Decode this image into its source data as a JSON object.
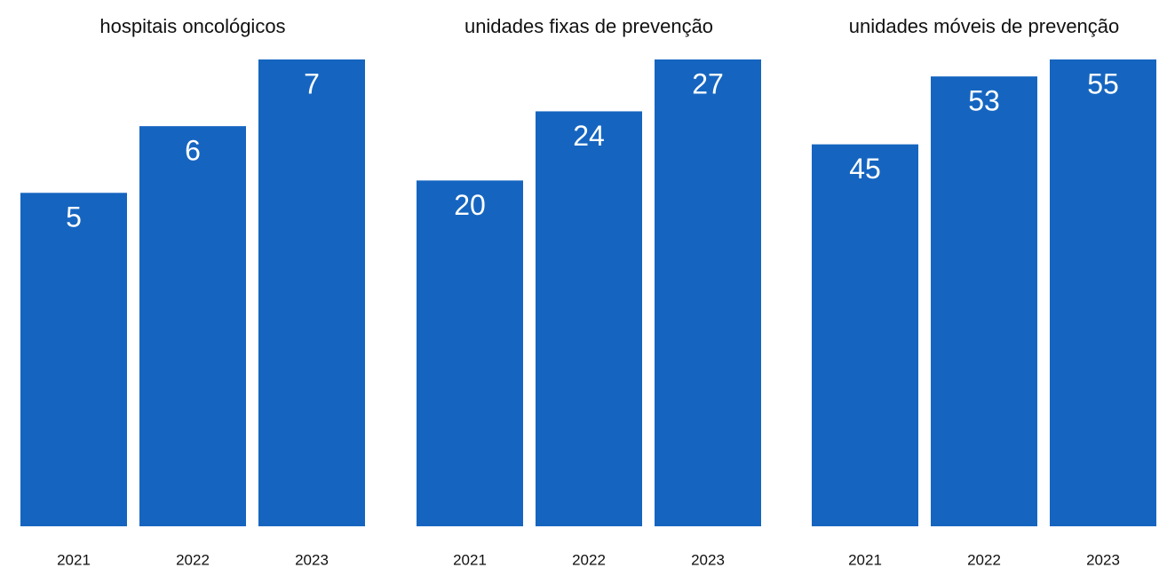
{
  "chart_data": [
    {
      "type": "bar",
      "title": "hospitais oncológicos",
      "categories": [
        "2021",
        "2022",
        "2023"
      ],
      "values": [
        5,
        6,
        7
      ],
      "color": "#1565c0",
      "ylim": [
        0,
        7
      ]
    },
    {
      "type": "bar",
      "title": "unidades fixas de prevenção",
      "categories": [
        "2021",
        "2022",
        "2023"
      ],
      "values": [
        20,
        24,
        27
      ],
      "color": "#1565c0",
      "ylim": [
        0,
        27
      ]
    },
    {
      "type": "bar",
      "title": "unidades móveis de prevenção",
      "categories": [
        "2021",
        "2022",
        "2023"
      ],
      "values": [
        45,
        53,
        55
      ],
      "color": "#1565c0",
      "ylim": [
        0,
        55
      ]
    }
  ]
}
